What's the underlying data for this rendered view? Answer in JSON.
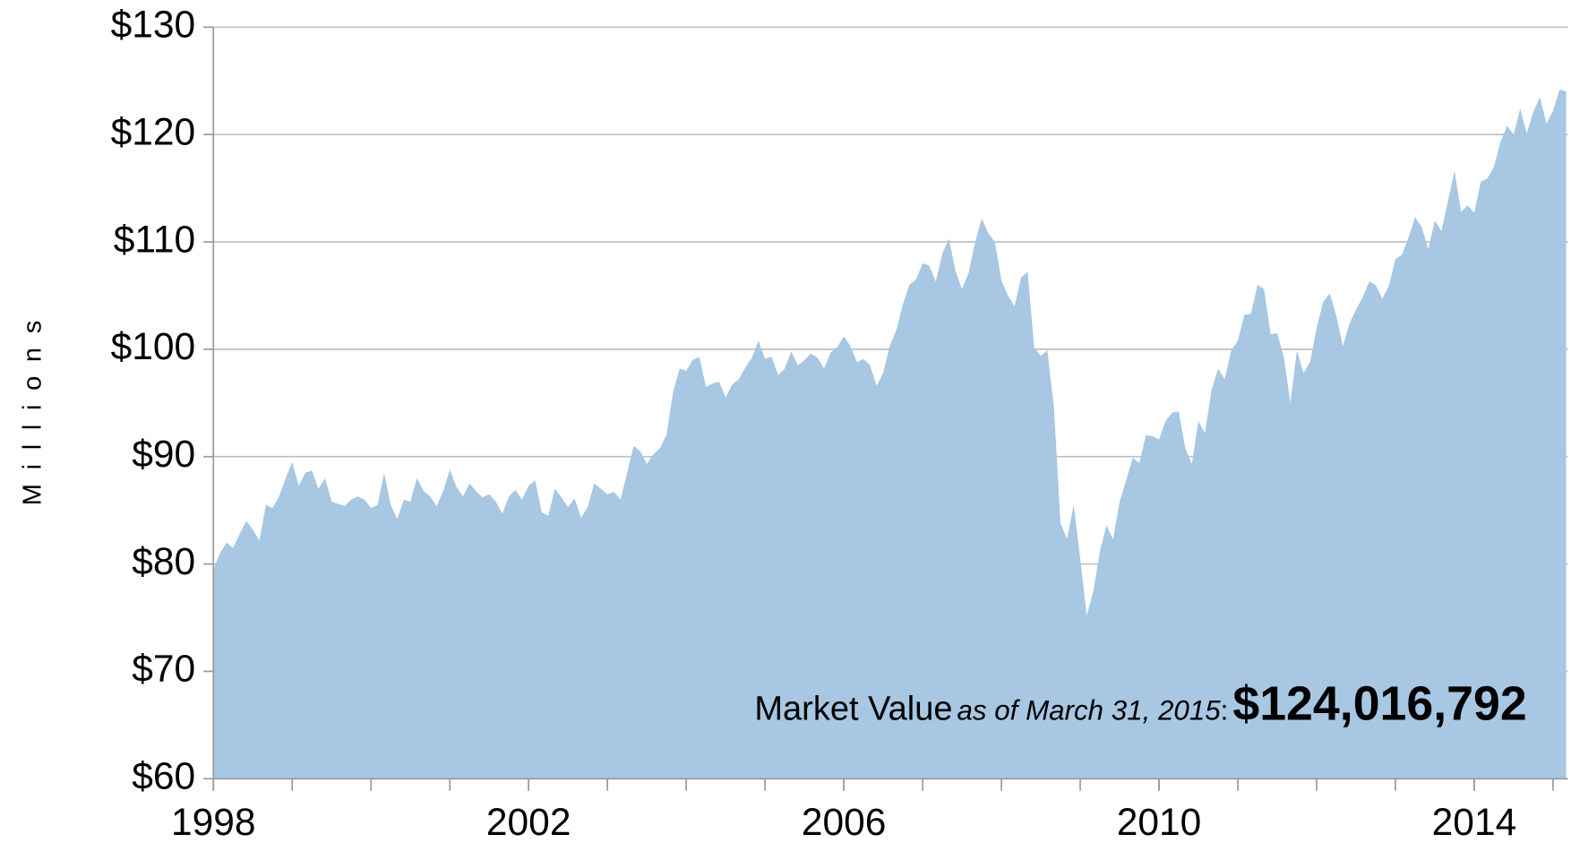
{
  "chart_data": {
    "type": "area",
    "y_axis_label": "Millions",
    "annotation": {
      "label": "Market Value",
      "date": "as of March 31, 2015",
      "sep": ":",
      "value": "$124,016,792"
    },
    "color": "#a7c7e2",
    "grid": true,
    "xlim": [
      1998,
      2015.19
    ],
    "xticks": [
      1998,
      2002,
      2006,
      2010,
      2014
    ],
    "xminor_ticks": [
      1998,
      1999,
      2000,
      2001,
      2002,
      2003,
      2004,
      2005,
      2006,
      2007,
      2008,
      2009,
      2010,
      2011,
      2012,
      2013,
      2014,
      2015
    ],
    "ylim": [
      60,
      130
    ],
    "yticks": [
      {
        "value": 60,
        "label": "$60"
      },
      {
        "value": 70,
        "label": "$70"
      },
      {
        "value": 80,
        "label": "$80"
      },
      {
        "value": 90,
        "label": "$90"
      },
      {
        "value": 100,
        "label": "$100"
      },
      {
        "value": 110,
        "label": "$110"
      },
      {
        "value": 120,
        "label": "$120"
      },
      {
        "value": 130,
        "label": "$130"
      }
    ],
    "x": [
      1998,
      1998.083,
      1998.167,
      1998.25,
      1998.333,
      1998.417,
      1998.5,
      1998.583,
      1998.667,
      1998.75,
      1998.833,
      1998.917,
      1999,
      1999.083,
      1999.167,
      1999.25,
      1999.333,
      1999.417,
      1999.5,
      1999.583,
      1999.667,
      1999.75,
      1999.833,
      1999.917,
      2000,
      2000.083,
      2000.167,
      2000.25,
      2000.333,
      2000.417,
      2000.5,
      2000.583,
      2000.667,
      2000.75,
      2000.833,
      2000.917,
      2001,
      2001.083,
      2001.167,
      2001.25,
      2001.333,
      2001.417,
      2001.5,
      2001.583,
      2001.667,
      2001.75,
      2001.833,
      2001.917,
      2002,
      2002.083,
      2002.167,
      2002.25,
      2002.333,
      2002.417,
      2002.5,
      2002.583,
      2002.667,
      2002.75,
      2002.833,
      2002.917,
      2003,
      2003.083,
      2003.167,
      2003.25,
      2003.333,
      2003.417,
      2003.5,
      2003.583,
      2003.667,
      2003.75,
      2003.833,
      2003.917,
      2004,
      2004.083,
      2004.167,
      2004.25,
      2004.333,
      2004.417,
      2004.5,
      2004.583,
      2004.667,
      2004.75,
      2004.833,
      2004.917,
      2005,
      2005.083,
      2005.167,
      2005.25,
      2005.333,
      2005.417,
      2005.5,
      2005.583,
      2005.667,
      2005.75,
      2005.833,
      2005.917,
      2006,
      2006.083,
      2006.167,
      2006.25,
      2006.333,
      2006.417,
      2006.5,
      2006.583,
      2006.667,
      2006.75,
      2006.833,
      2006.917,
      2007,
      2007.083,
      2007.167,
      2007.25,
      2007.333,
      2007.417,
      2007.5,
      2007.583,
      2007.667,
      2007.75,
      2007.833,
      2007.917,
      2008,
      2008.083,
      2008.167,
      2008.25,
      2008.333,
      2008.417,
      2008.5,
      2008.583,
      2008.667,
      2008.75,
      2008.833,
      2008.917,
      2009,
      2009.083,
      2009.167,
      2009.25,
      2009.333,
      2009.417,
      2009.5,
      2009.583,
      2009.667,
      2009.75,
      2009.833,
      2009.917,
      2010,
      2010.083,
      2010.167,
      2010.25,
      2010.333,
      2010.417,
      2010.5,
      2010.583,
      2010.667,
      2010.75,
      2010.833,
      2010.917,
      2011,
      2011.083,
      2011.167,
      2011.25,
      2011.333,
      2011.417,
      2011.5,
      2011.583,
      2011.667,
      2011.75,
      2011.833,
      2011.917,
      2012,
      2012.083,
      2012.167,
      2012.25,
      2012.333,
      2012.417,
      2012.5,
      2012.583,
      2012.667,
      2012.75,
      2012.833,
      2012.917,
      2013,
      2013.083,
      2013.167,
      2013.25,
      2013.333,
      2013.417,
      2013.5,
      2013.583,
      2013.667,
      2013.75,
      2013.833,
      2013.917,
      2014,
      2014.083,
      2014.167,
      2014.25,
      2014.333,
      2014.417,
      2014.5,
      2014.583,
      2014.667,
      2014.75,
      2014.833,
      2014.917,
      2015,
      2015.083,
      2015.167
    ],
    "values": [
      79.5,
      81,
      82,
      81.5,
      82.8,
      84,
      83.2,
      82.2,
      85.5,
      85.2,
      86.3,
      88,
      89.5,
      87.3,
      88.5,
      88.7,
      87,
      88,
      85.8,
      85.6,
      85.4,
      86,
      86.3,
      86,
      85.2,
      85.5,
      88.5,
      85.5,
      84.2,
      86,
      85.8,
      88,
      86.8,
      86.3,
      85.4,
      86.8,
      88.8,
      87.2,
      86.3,
      87.5,
      86.8,
      86.2,
      86.5,
      85.8,
      84.7,
      86.3,
      86.9,
      86,
      87.3,
      87.8,
      84.8,
      84.5,
      87,
      86.2,
      85.3,
      86.1,
      84.3,
      85.3,
      87.5,
      87,
      86.5,
      86.7,
      86,
      88.5,
      91,
      90.5,
      89.3,
      90.2,
      90.8,
      92,
      96,
      98.2,
      98,
      99,
      99.3,
      96.5,
      96.8,
      97,
      95.5,
      96.7,
      97.2,
      98.3,
      99.2,
      100.8,
      99.1,
      99.3,
      97.6,
      98.2,
      99.8,
      98.5,
      99,
      99.6,
      99.2,
      98.2,
      99.7,
      100.2,
      101.2,
      100.3,
      98.8,
      99.1,
      98.5,
      96.6,
      97.8,
      100.3,
      101.8,
      104.2,
      106,
      106.5,
      108,
      107.8,
      106.3,
      108.9,
      110.3,
      107.3,
      105.6,
      107.1,
      110,
      112.2,
      110.8,
      110,
      106.4,
      105,
      104,
      106.7,
      107.2,
      100.1,
      99.4,
      99.9,
      94.5,
      83.8,
      82.3,
      85.5,
      80.5,
      75.2,
      77.5,
      81.2,
      83.6,
      82.3,
      85.8,
      87.8,
      89.9,
      89.4,
      92,
      91.9,
      91.6,
      93.3,
      94.1,
      94.2,
      90.8,
      89.3,
      93.3,
      92.2,
      96.2,
      98.2,
      97.2,
      99.9,
      100.8,
      103.2,
      103.3,
      106,
      105.6,
      101.4,
      101.5,
      99.3,
      95,
      99.9,
      97.8,
      98.8,
      102,
      104.4,
      105.2,
      103.1,
      100.3,
      102.4,
      103.7,
      104.8,
      106.3,
      106,
      104.7,
      105.9,
      108.4,
      108.8,
      110.4,
      112.3,
      111.4,
      109.3,
      112,
      111,
      113.8,
      116.6,
      112.8,
      113.4,
      112.7,
      115.6,
      115.9,
      117,
      119.3,
      120.8,
      120,
      122.4,
      120.1,
      122.1,
      123.5,
      121,
      122.2,
      124.2,
      124
    ]
  }
}
